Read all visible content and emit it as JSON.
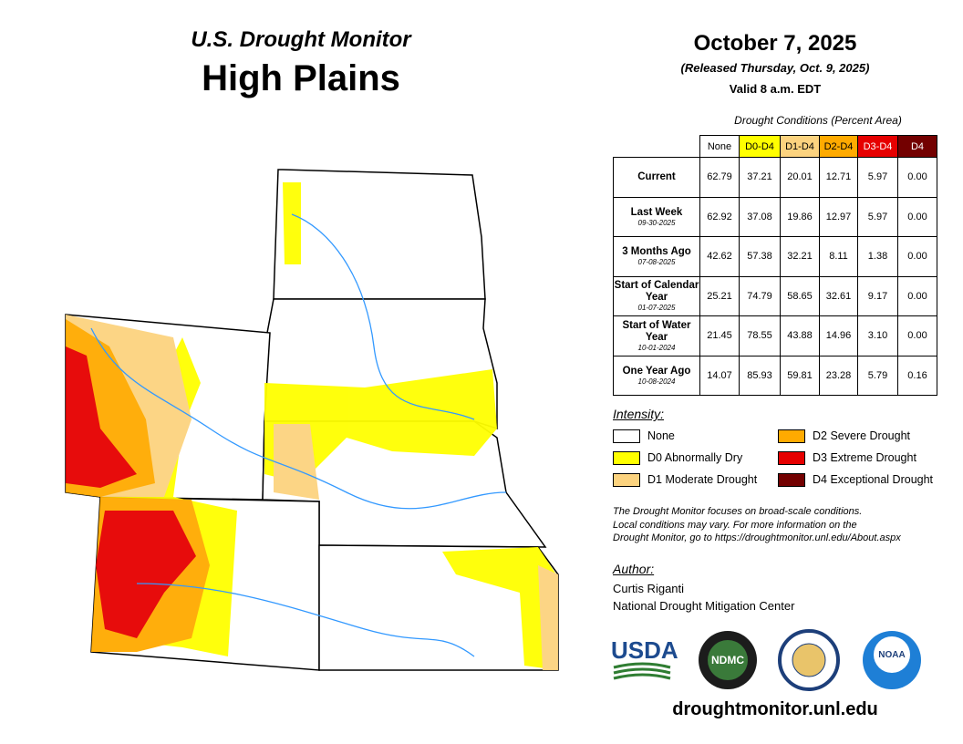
{
  "header": {
    "kicker": "U.S. Drought Monitor",
    "region": "High Plains",
    "date": "October 7, 2025",
    "released": "(Released Thursday, Oct. 9, 2025)",
    "valid": "Valid 8 a.m. EDT"
  },
  "table": {
    "caption": "Drought Conditions (Percent Area)",
    "columns": [
      "None",
      "D0-D4",
      "D1-D4",
      "D2-D4",
      "D3-D4",
      "D4"
    ],
    "rows": [
      {
        "label": "Current",
        "values": [
          "62.79",
          "37.21",
          "20.01",
          "12.71",
          "5.97",
          "0.00"
        ]
      },
      {
        "label": "Last Week",
        "date": "09-30-2025",
        "values": [
          "62.92",
          "37.08",
          "19.86",
          "12.97",
          "5.97",
          "0.00"
        ]
      },
      {
        "label": "3 Months Ago",
        "date": "07-08-2025",
        "values": [
          "42.62",
          "57.38",
          "32.21",
          "8.11",
          "1.38",
          "0.00"
        ]
      },
      {
        "label": "Start of Calendar Year",
        "date": "01-07-2025",
        "values": [
          "25.21",
          "74.79",
          "58.65",
          "32.61",
          "9.17",
          "0.00"
        ]
      },
      {
        "label": "Start of Water Year",
        "date": "10-01-2024",
        "values": [
          "21.45",
          "78.55",
          "43.88",
          "14.96",
          "3.10",
          "0.00"
        ]
      },
      {
        "label": "One Year Ago",
        "date": "10-08-2024",
        "values": [
          "14.07",
          "85.93",
          "59.81",
          "23.28",
          "5.79",
          "0.16"
        ]
      }
    ]
  },
  "legend": {
    "title": "Intensity:",
    "items": [
      "None",
      "D0 Abnormally Dry",
      "D1 Moderate Drought",
      "D2 Severe Drought",
      "D3 Extreme Drought",
      "D4 Exceptional Drought"
    ]
  },
  "note": [
    "The Drought Monitor focuses on broad-scale conditions.",
    "Local conditions may vary. For more information on the",
    "Drought Monitor, go to https://droughtmonitor.unl.edu/About.aspx"
  ],
  "author": {
    "label": "Author:",
    "name": "Curtis Riganti",
    "org": "National Drought Mitigation Center"
  },
  "logos": [
    "USDA",
    "NDMC",
    "NOAA"
  ],
  "url": "droughtmonitor.unl.edu"
}
